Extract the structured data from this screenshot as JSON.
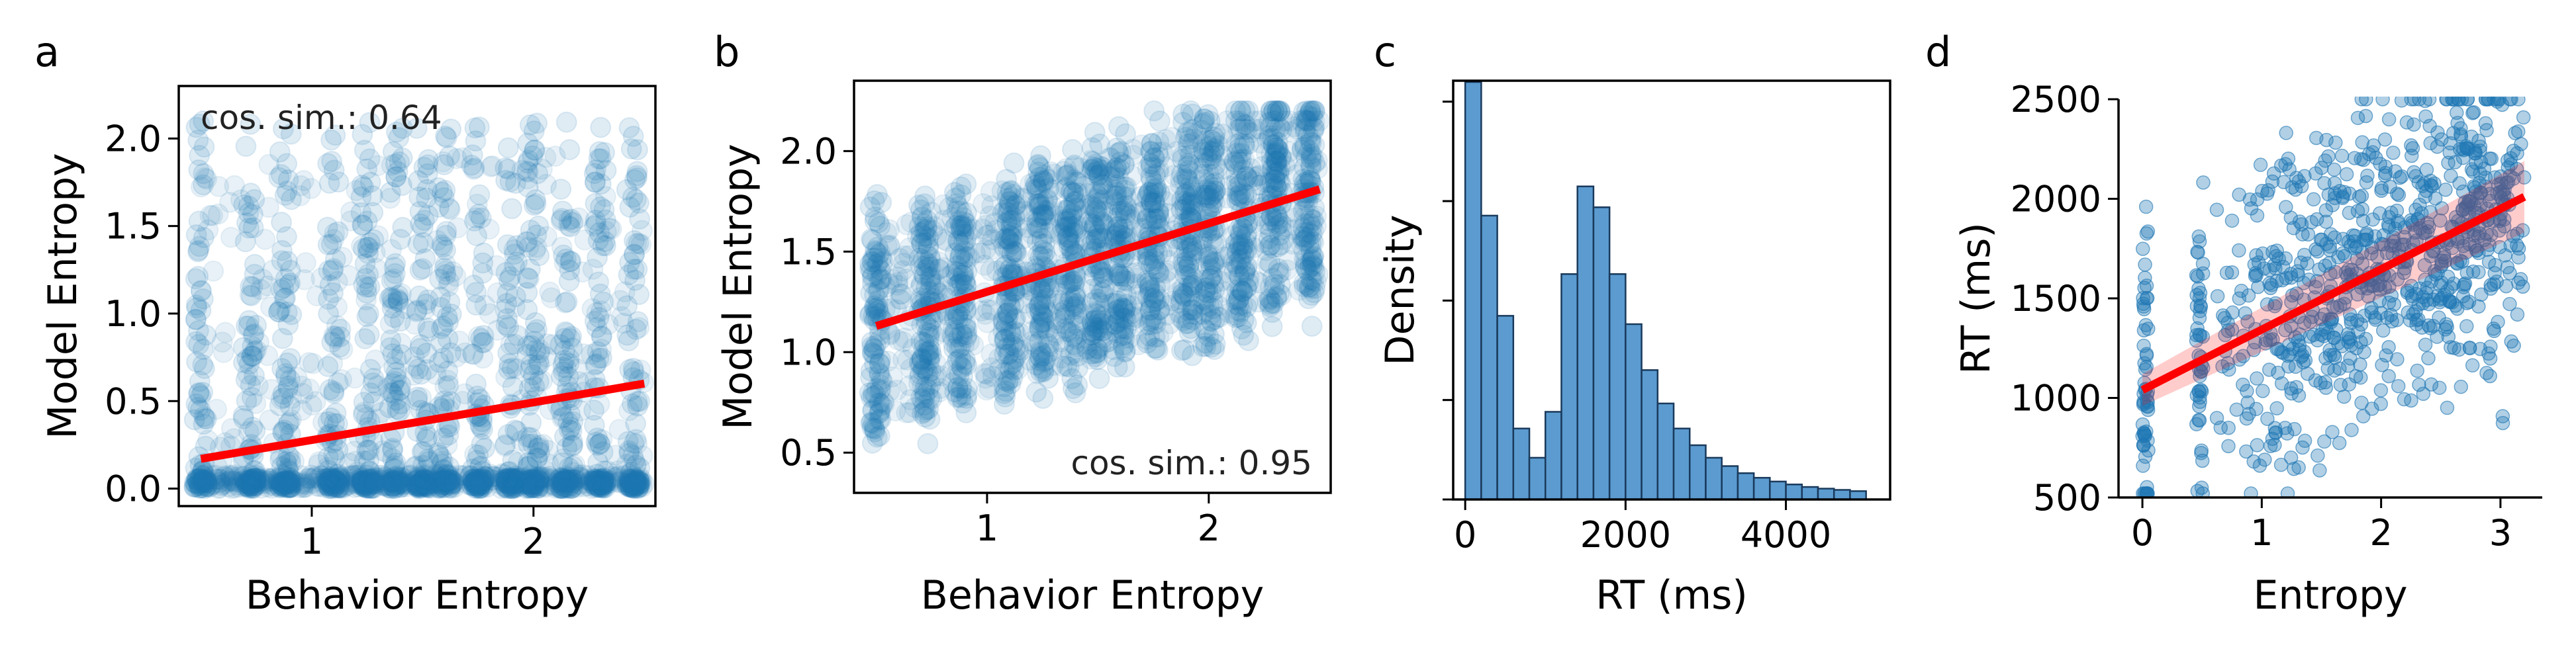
{
  "colors": {
    "points": "#1f77b4",
    "fit_line": "#ff0000",
    "hist_fill": "#5b9bd0",
    "hist_edge": "#1a3a5c"
  },
  "chart_data": [
    {
      "id": "a",
      "panel_label": "a",
      "type": "scatter",
      "xlabel": "Behavior Entropy",
      "ylabel": "Model Entropy",
      "xlim": [
        0.4,
        2.55
      ],
      "ylim": [
        -0.1,
        2.3
      ],
      "xticks": [
        1,
        2
      ],
      "yticks": [
        0.0,
        0.5,
        1.0,
        1.5,
        2.0
      ],
      "annotation": "cos. sim.: 0.64",
      "annotation_position": "top-left",
      "x_columns": [
        0.5,
        0.72,
        0.88,
        1.1,
        1.25,
        1.38,
        1.5,
        1.6,
        1.75,
        1.9,
        2.0,
        2.15,
        2.3,
        2.45
      ],
      "fit_line": {
        "x": [
          0.5,
          2.5
        ],
        "y": [
          0.17,
          0.6
        ]
      }
    },
    {
      "id": "b",
      "panel_label": "b",
      "type": "scatter",
      "xlabel": "Behavior Entropy",
      "ylabel": "Model Entropy",
      "xlim": [
        0.4,
        2.55
      ],
      "ylim": [
        0.3,
        2.35
      ],
      "xticks": [
        1,
        2
      ],
      "yticks": [
        0.5,
        1.0,
        1.5,
        2.0
      ],
      "annotation": "cos. sim.: 0.95",
      "annotation_position": "bottom-right",
      "x_columns": [
        0.5,
        0.72,
        0.88,
        1.1,
        1.25,
        1.38,
        1.5,
        1.6,
        1.75,
        1.9,
        2.0,
        2.15,
        2.3,
        2.45
      ],
      "fit_line": {
        "x": [
          0.5,
          2.5
        ],
        "y": [
          1.13,
          1.81
        ]
      }
    },
    {
      "id": "c",
      "panel_label": "c",
      "type": "bar",
      "xlabel": "RT (ms)",
      "ylabel": "Density",
      "xlim": [
        -150,
        5300
      ],
      "xticks": [
        0,
        2000,
        4000
      ],
      "bin_width": 200,
      "bin_start": 0,
      "values": [
        1.0,
        0.68,
        0.44,
        0.17,
        0.1,
        0.21,
        0.54,
        0.75,
        0.7,
        0.54,
        0.42,
        0.31,
        0.23,
        0.17,
        0.13,
        0.1,
        0.08,
        0.063,
        0.052,
        0.043,
        0.036,
        0.03,
        0.026,
        0.023,
        0.02
      ]
    },
    {
      "id": "d",
      "panel_label": "d",
      "type": "scatter",
      "xlabel": "Entropy",
      "ylabel": "RT (ms)",
      "xlim": [
        -0.2,
        3.35
      ],
      "ylim": [
        500,
        2500
      ],
      "xticks": [
        0,
        1,
        2,
        3
      ],
      "yticks": [
        500,
        1000,
        1500,
        2000,
        2500
      ],
      "fit_line": {
        "x": [
          0.0,
          3.2
        ],
        "y": [
          1040,
          2010
        ]
      },
      "ci_band": {
        "x": [
          0.0,
          3.2
        ],
        "lower": [
          960,
          1830
        ],
        "upper": [
          1120,
          2190
        ]
      }
    }
  ]
}
